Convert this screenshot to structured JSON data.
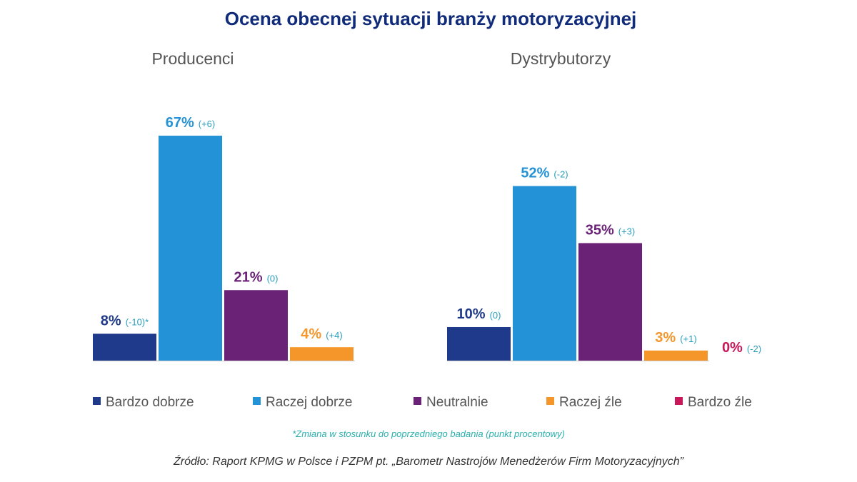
{
  "chart_data": {
    "type": "bar",
    "title": "Ocena obecnej sytuacji branży motoryzacyjnej",
    "unit": "%",
    "groups": [
      {
        "name": "Producenci",
        "bars": [
          {
            "category": "Bardzo dobrze",
            "value": 8,
            "value_label": "8%",
            "change_label": "(-10)*"
          },
          {
            "category": "Raczej dobrze",
            "value": 67,
            "value_label": "67%",
            "change_label": "(+6)"
          },
          {
            "category": "Neutralnie",
            "value": 21,
            "value_label": "21%",
            "change_label": "(0)"
          },
          {
            "category": "Raczej źle",
            "value": 4,
            "value_label": "4%",
            "change_label": "(+4)"
          }
        ]
      },
      {
        "name": "Dystrybutorzy",
        "bars": [
          {
            "category": "Bardzo dobrze",
            "value": 10,
            "value_label": "10%",
            "change_label": "(0)"
          },
          {
            "category": "Raczej dobrze",
            "value": 52,
            "value_label": "52%",
            "change_label": "(-2)"
          },
          {
            "category": "Neutralnie",
            "value": 35,
            "value_label": "35%",
            "change_label": "(+3)"
          },
          {
            "category": "Raczej źle",
            "value": 3,
            "value_label": "3%",
            "change_label": "(+1)"
          },
          {
            "category": "Bardzo źle",
            "value": 0,
            "value_label": "0%",
            "change_label": "(-2)"
          }
        ]
      }
    ],
    "legend": [
      {
        "label": "Bardzo dobrze",
        "color": "#1f3a8a"
      },
      {
        "label": "Raczej dobrze",
        "color": "#2492d6"
      },
      {
        "label": "Neutralnie",
        "color": "#6a2277"
      },
      {
        "label": "Raczej źle",
        "color": "#f5962a"
      },
      {
        "label": "Bardzo źle",
        "color": "#c8185a"
      }
    ],
    "note": "*Zmiana w stosunku do poprzedniego badania (punkt procentowy)",
    "source": "Źródło: Raport KPMG w Polsce i PZPM pt. „Barometr Nastrojów Menedżerów Firm Motoryzacyjnych”"
  }
}
